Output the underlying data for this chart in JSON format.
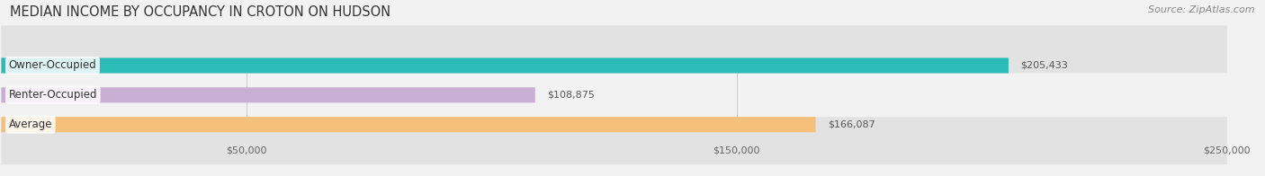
{
  "title": "MEDIAN INCOME BY OCCUPANCY IN CROTON ON HUDSON",
  "source": "Source: ZipAtlas.com",
  "categories": [
    "Owner-Occupied",
    "Renter-Occupied",
    "Average"
  ],
  "values": [
    205433,
    108875,
    166087
  ],
  "bar_colors": [
    "#2bbcb8",
    "#c9afd4",
    "#f5c07a"
  ],
  "bar_labels": [
    "$205,433",
    "$108,875",
    "$166,087"
  ],
  "xlim": [
    0,
    250000
  ],
  "xtick_vals": [
    50000,
    150000,
    250000
  ],
  "xtick_labels": [
    "$50,000",
    "$150,000",
    "$250,000"
  ],
  "bg_color": "#f2f2f2",
  "bar_bg_color": "#e2e2e2",
  "title_fontsize": 10.5,
  "source_fontsize": 8,
  "label_fontsize": 8.5,
  "value_fontsize": 8,
  "bar_height": 0.52,
  "rounding": 0.18
}
